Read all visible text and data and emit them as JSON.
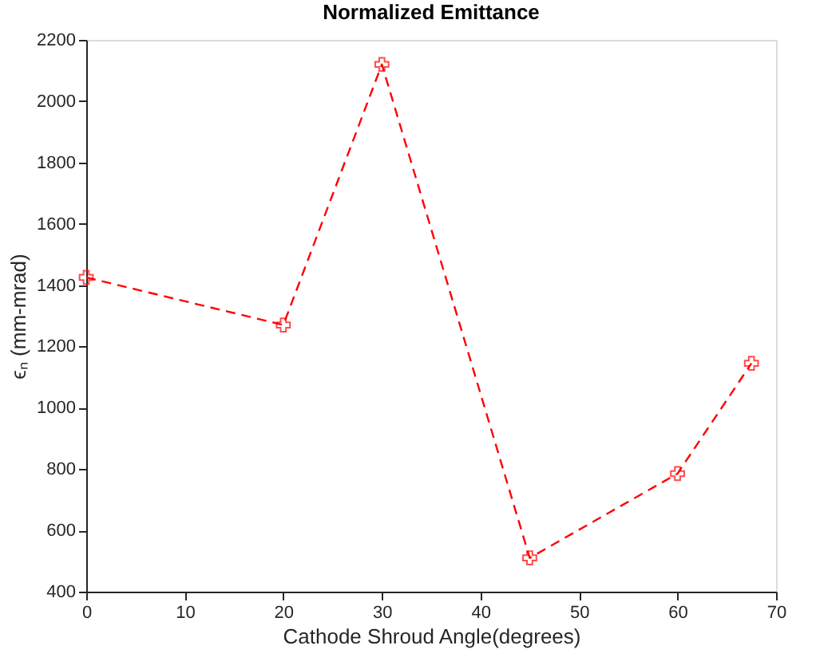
{
  "chart_data": {
    "type": "line",
    "title": "Normalized Emittance",
    "xlabel": "Cathode Shroud Angle(degrees)",
    "ylabel": "ϵₙ (mm-mrad)",
    "x": [
      0,
      20,
      30,
      45,
      60,
      67.5
    ],
    "series": [
      {
        "color": "#ff0000",
        "values": [
          1425,
          1270,
          2120,
          510,
          785,
          1145
        ]
      }
    ],
    "xlim": [
      0,
      70
    ],
    "xticks": [
      0,
      10,
      20,
      30,
      40,
      50,
      60,
      70
    ],
    "ylim": [
      400,
      2200
    ],
    "yticks": [
      400,
      600,
      800,
      1000,
      1200,
      1400,
      1600,
      1800,
      2000,
      2200
    ],
    "grid": false,
    "marker": "cross",
    "line_style": "dashed"
  }
}
